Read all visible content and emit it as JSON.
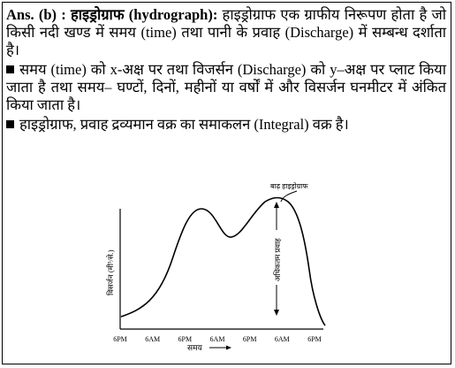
{
  "answer": {
    "prefix": "Ans. (b) : ",
    "term_hindi": "हाइड्रोग्राफ",
    "term_english": " (hydrograph):",
    "definition": " हाइड्रोग्राफ एक ग्राफीय निरूपण होता है जो किसी नदी खण्ड में समय (time) तथा पानी के प्रवाह (Discharge) में सम्बन्ध दर्शाता है।"
  },
  "bullets": [
    "समय (time) को x-अक्ष पर तथा विजर्सन (Discharge) को y–अक्ष पर प्लाट किया जाता है तथा समय– घण्टों, दिनों, महीनों या वर्षों में और विसर्जन घनमीटर में अंकित किया जाता है।",
    "हाइड्रोग्राफ, प्रवाह द्रव्यमान वक्र का समाकलन (Integral) वक्र है।"
  ],
  "chart_data": {
    "type": "line",
    "x": [
      "6PM",
      "6AM",
      "6PM",
      "6AM",
      "6PM",
      "6AM",
      "6PM"
    ],
    "ylabel": "विसर्जन (मी³/से.)",
    "xlabel": "समय",
    "annotations": [
      "बाढ़ हाइड्रोग्राफ",
      "अधिकतम प्रवाह"
    ]
  }
}
